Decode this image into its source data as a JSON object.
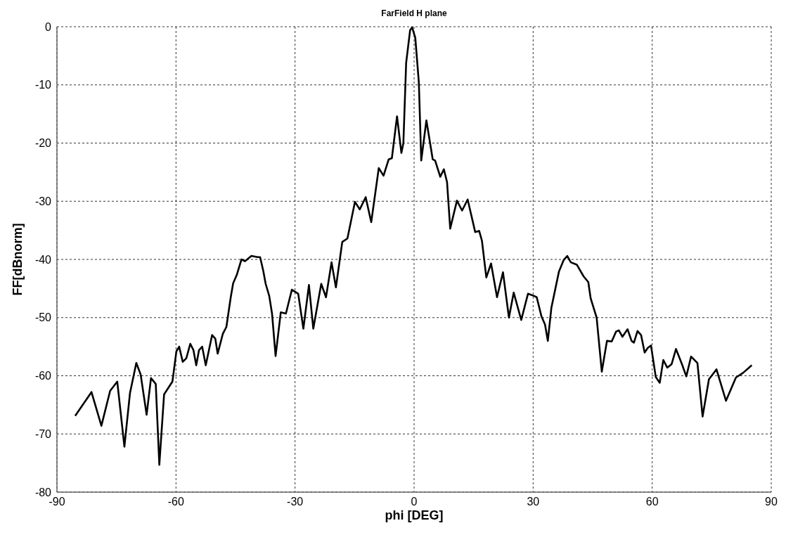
{
  "chart_data": {
    "type": "line",
    "title": "FarField H plane",
    "xlabel": "phi [DEG]",
    "ylabel": "FF[dBnorm]",
    "x": [
      -85.4,
      -81.3,
      -78.8,
      -76.6,
      -74.8,
      -73.0,
      -71.6,
      -70.0,
      -68.9,
      -67.4,
      -66.3,
      -65.1,
      -64.2,
      -63.0,
      -60.9,
      -59.9,
      -59.2,
      -58.3,
      -57.4,
      -56.4,
      -55.6,
      -54.9,
      -54.2,
      -53.4,
      -52.5,
      -50.9,
      -50.1,
      -49.5,
      -48.2,
      -47.3,
      -46.2,
      -45.6,
      -44.7,
      -43.5,
      -42.6,
      -41.0,
      -39.4,
      -38.8,
      -38.0,
      -37.4,
      -36.5,
      -35.8,
      -34.9,
      -33.6,
      -32.3,
      -30.8,
      -29.2,
      -27.9,
      -26.5,
      -25.4,
      -23.4,
      -22.2,
      -20.8,
      -19.7,
      -18.1,
      -16.8,
      -14.9,
      -13.7,
      -12.2,
      -10.8,
      -8.9,
      -7.7,
      -6.4,
      -5.6,
      -4.3,
      -3.2,
      -2.7,
      -2.0,
      -1.0,
      -0.5,
      0.3,
      1.2,
      1.8,
      3.1,
      4.7,
      5.3,
      6.6,
      7.5,
      8.3,
      9.1,
      10.8,
      12.1,
      13.5,
      15.4,
      16.4,
      17.1,
      18.2,
      19.4,
      20.9,
      22.4,
      23.9,
      25.1,
      27.0,
      28.7,
      30.3,
      30.9,
      32.1,
      33.0,
      33.7,
      34.6,
      36.5,
      37.7,
      38.6,
      39.5,
      41.0,
      42.7,
      43.9,
      44.5,
      46.0,
      47.3,
      48.6,
      49.8,
      50.9,
      51.6,
      52.5,
      53.8,
      54.8,
      55.4,
      56.3,
      57.2,
      58.1,
      58.9,
      59.7,
      60.9,
      61.9,
      62.8,
      63.8,
      64.9,
      66.0,
      67.5,
      68.6,
      69.8,
      71.4,
      72.7,
      74.3,
      76.2,
      78.6,
      81.1,
      82.9,
      85.1
    ],
    "series": [
      {
        "color": "#000000",
        "values": [
          -66.9,
          -62.8,
          -68.6,
          -62.6,
          -61.0,
          -72.2,
          -63.0,
          -57.8,
          -59.8,
          -66.7,
          -60.4,
          -61.4,
          -75.3,
          -63.2,
          -61.0,
          -55.8,
          -55.0,
          -57.6,
          -57.0,
          -54.5,
          -55.6,
          -58.2,
          -55.6,
          -55.0,
          -58.2,
          -53.0,
          -53.6,
          -56.2,
          -52.8,
          -51.6,
          -46.5,
          -44.1,
          -42.7,
          -40.0,
          -40.3,
          -39.4,
          -39.6,
          -39.6,
          -42.0,
          -44.2,
          -46.3,
          -49.3,
          -56.6,
          -49.1,
          -49.3,
          -45.2,
          -45.9,
          -51.9,
          -44.4,
          -51.9,
          -44.2,
          -46.5,
          -40.5,
          -44.8,
          -37.0,
          -36.4,
          -30.1,
          -31.4,
          -29.3,
          -33.6,
          -24.3,
          -25.6,
          -22.8,
          -22.6,
          -15.4,
          -21.7,
          -20.0,
          -6.2,
          -0.6,
          -0.1,
          -1.9,
          -9.6,
          -23.0,
          -16.1,
          -22.8,
          -23.0,
          -25.8,
          -24.5,
          -26.7,
          -34.7,
          -29.9,
          -31.6,
          -29.7,
          -35.3,
          -35.1,
          -36.8,
          -43.1,
          -40.7,
          -46.5,
          -42.2,
          -50.0,
          -45.7,
          -50.4,
          -45.9,
          -46.3,
          -46.5,
          -49.8,
          -51.2,
          -54.0,
          -48.3,
          -42.1,
          -40.1,
          -39.4,
          -40.5,
          -40.9,
          -42.9,
          -43.9,
          -46.7,
          -50.0,
          -59.3,
          -54.0,
          -54.1,
          -52.4,
          -52.2,
          -53.3,
          -52.0,
          -54.0,
          -54.3,
          -52.3,
          -53.0,
          -56.0,
          -55.2,
          -54.8,
          -60.2,
          -61.2,
          -57.3,
          -58.6,
          -58.0,
          -55.4,
          -58.0,
          -60.1,
          -56.7,
          -57.8,
          -67.0,
          -60.6,
          -58.9,
          -64.3,
          -60.3,
          -59.5,
          -58.2
        ]
      }
    ],
    "xlim": [
      -90,
      90
    ],
    "xticks": [
      -90,
      -60,
      -30,
      0,
      30,
      60,
      90
    ],
    "ylim": [
      -80,
      0
    ],
    "yticks": [
      -80,
      -70,
      -60,
      -50,
      -40,
      -30,
      -20,
      -10,
      0
    ],
    "grid": true,
    "line_style": "solid"
  }
}
